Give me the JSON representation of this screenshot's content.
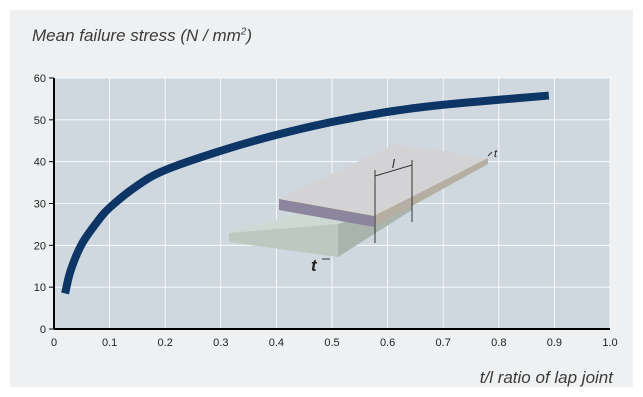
{
  "chart_data": {
    "type": "line",
    "title_prefix": "Mean failure stress (N / mm",
    "title_sup": "2",
    "title_suffix": ")",
    "xlabel": "t/l ratio of lap joint",
    "ylabel": "",
    "xlim": [
      0,
      1.0
    ],
    "ylim": [
      0,
      60
    ],
    "x_ticks": [
      "0",
      "0.1",
      "0.2",
      "0.3",
      "0.4",
      "0.5",
      "0.6",
      "0.7",
      "0.8",
      "0.9",
      "1.0"
    ],
    "y_ticks": [
      "0",
      "10",
      "20",
      "30",
      "40",
      "50",
      "60"
    ],
    "grid": true,
    "series": [
      {
        "color": "#0d3566",
        "x": [
          0.02,
          0.03,
          0.05,
          0.08,
          0.1,
          0.15,
          0.2,
          0.3,
          0.4,
          0.5,
          0.6,
          0.7,
          0.8,
          0.89
        ],
        "y": [
          8.5,
          14.0,
          20.3,
          26.0,
          29.0,
          34.3,
          38.0,
          42.6,
          46.4,
          49.5,
          51.9,
          53.6,
          54.8,
          55.8
        ]
      }
    ],
    "inset": {
      "label_l": "l",
      "label_t_small": "t",
      "label_t_large": "t"
    }
  }
}
